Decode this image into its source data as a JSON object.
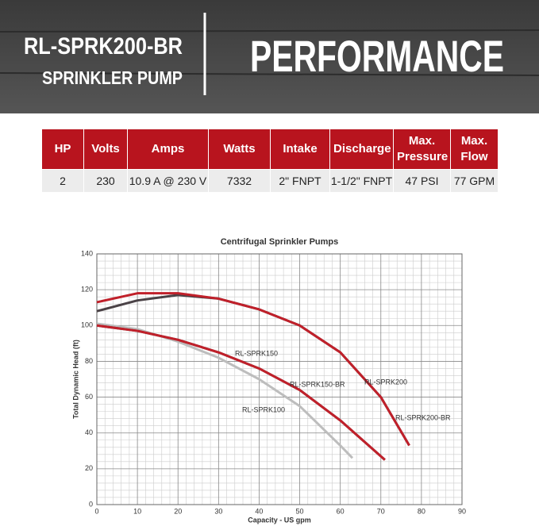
{
  "header": {
    "model": "RL-SPRK200-BR",
    "subtitle": "SPRINKLER PUMP",
    "title": "PERFORMANCE"
  },
  "table": {
    "headers": [
      "HP",
      "Volts",
      "Amps",
      "Watts",
      "Intake",
      "Discharge",
      "Max. Pressure",
      "Max. Flow"
    ],
    "rows": [
      [
        "2",
        "230",
        "10.9 A @ 230 V",
        "7332",
        "2\" FNPT",
        "1-1/2\" FNPT",
        "47 PSI",
        "77 GPM"
      ]
    ]
  },
  "chart_data": {
    "type": "line",
    "title": "Centrifugal Sprinkler Pumps",
    "xlabel": "Capacity - US gpm",
    "ylabel": "Total Dynamic Head (ft)",
    "xlim": [
      0,
      90
    ],
    "xticks": [
      0,
      10,
      20,
      30,
      40,
      50,
      60,
      70,
      80,
      90
    ],
    "ylim": [
      0,
      140
    ],
    "yticks": [
      0,
      20,
      40,
      60,
      80,
      100,
      120,
      140
    ],
    "grid": true,
    "series": [
      {
        "name": "RL-SPRK100",
        "color": "#bdbdbd",
        "x": [
          0,
          10,
          20,
          30,
          40,
          50,
          60,
          63
        ],
        "values": [
          101,
          98,
          91,
          82,
          70,
          55,
          33,
          26
        ]
      },
      {
        "name": "RL-SPRK150",
        "color": "#5a4a4e",
        "x": [
          0,
          10,
          20,
          30,
          40,
          50,
          60,
          71
        ],
        "values": [
          100,
          97,
          92,
          85,
          76,
          64,
          47,
          25
        ]
      },
      {
        "name": "RL-SPRK150-BR",
        "color": "#c0202a",
        "x": [
          0,
          10,
          20,
          30,
          40,
          50,
          60,
          71
        ],
        "values": [
          100,
          97,
          92,
          85,
          76,
          64,
          47,
          25
        ]
      },
      {
        "name": "RL-SPRK200",
        "color": "#4a4246",
        "x": [
          0,
          10,
          20,
          30,
          40,
          50,
          60,
          70,
          77
        ],
        "values": [
          108,
          114,
          117,
          115,
          109,
          100,
          85,
          60,
          33
        ]
      },
      {
        "name": "RL-SPRK200-BR",
        "color": "#c0202a",
        "x": [
          0,
          10,
          20,
          30,
          40,
          50,
          60,
          70,
          77
        ],
        "values": [
          113,
          118,
          118,
          115,
          109,
          100,
          85,
          60,
          33
        ]
      }
    ]
  }
}
